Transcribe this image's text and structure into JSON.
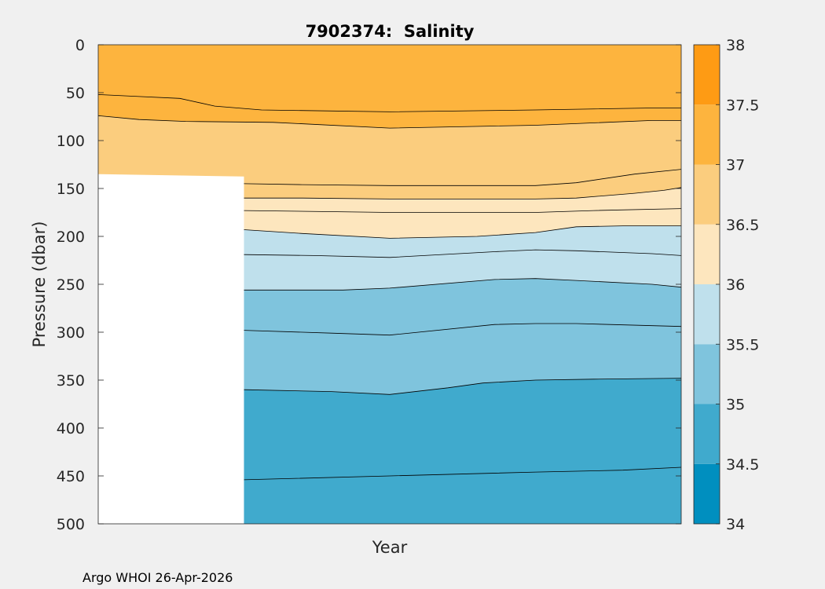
{
  "chart_data": {
    "type": "heatmap",
    "subtype": "filled-contour",
    "title": "7902374:  Salinity",
    "xlabel": "Year",
    "ylabel": "Pressure (dbar)",
    "ylim": [
      0,
      500
    ],
    "y_reversed": true,
    "y_ticks": [
      0,
      50,
      100,
      150,
      200,
      250,
      300,
      350,
      400,
      450,
      500
    ],
    "x_fraction_range": [
      0,
      1
    ],
    "x_ticks": [],
    "missing_data_region": {
      "x_fraction": [
        0,
        0.25
      ],
      "pressure_from": [
        135,
        137.5
      ],
      "pressure_to": 500
    },
    "colorbar": {
      "label_values": [
        "34",
        "34.5",
        "35",
        "35.5",
        "36",
        "36.5",
        "37",
        "37.5",
        "38"
      ],
      "bins": [
        {
          "from": 34.0,
          "to": 34.5,
          "color": "#008fbf"
        },
        {
          "from": 34.5,
          "to": 35.0,
          "color": "#40aacd"
        },
        {
          "from": 35.0,
          "to": 35.5,
          "color": "#7fc4dd"
        },
        {
          "from": 35.5,
          "to": 36.0,
          "color": "#bfe0ec"
        },
        {
          "from": 36.0,
          "to": 36.5,
          "color": "#fde6be"
        },
        {
          "from": 36.5,
          "to": 37.0,
          "color": "#fbcd7e"
        },
        {
          "from": 37.0,
          "to": 37.5,
          "color": "#fdb43e"
        },
        {
          "from": 37.5,
          "to": 38.0,
          "color": "#fe9b14"
        }
      ]
    },
    "contours": [
      {
        "name": "s-37.25",
        "below_color": "#fdb43e",
        "x": [
          0,
          0.07,
          0.14,
          0.2,
          0.28,
          0.5,
          0.75,
          0.95,
          1
        ],
        "pressure": [
          52,
          54,
          56,
          64,
          68,
          70,
          68,
          66,
          66
        ]
      },
      {
        "name": "s-37.0",
        "below_color": "#fbcd7e",
        "x": [
          0,
          0.07,
          0.15,
          0.3,
          0.5,
          0.75,
          0.95,
          1
        ],
        "pressure": [
          74,
          78,
          80,
          81,
          87,
          84,
          79,
          79
        ]
      },
      {
        "name": "s-36.75",
        "below_color": "#fbcd7e",
        "x": [
          0.25,
          0.35,
          0.5,
          0.75,
          0.82,
          0.92,
          1
        ],
        "pressure": [
          145,
          146,
          147,
          147,
          144,
          135,
          130
        ]
      },
      {
        "name": "s-36.5",
        "below_color": "#fde6be",
        "x": [
          0.25,
          0.35,
          0.5,
          0.75,
          0.82,
          0.92,
          0.97,
          1
        ],
        "pressure": [
          160,
          160,
          161,
          161,
          160,
          155,
          152,
          149
        ]
      },
      {
        "name": "s-36.25",
        "below_color": "#fde6be",
        "x": [
          0.25,
          0.5,
          0.75,
          0.85,
          1
        ],
        "pressure": [
          173,
          175,
          175,
          173,
          171
        ]
      },
      {
        "name": "s-36.0",
        "below_color": "#bfe0ec",
        "x": [
          0.25,
          0.35,
          0.5,
          0.65,
          0.75,
          0.82,
          0.9,
          1
        ],
        "pressure": [
          193,
          197,
          202,
          200,
          196,
          190,
          189,
          189
        ]
      },
      {
        "name": "s-35.75",
        "below_color": "#bfe0ec",
        "x": [
          0.25,
          0.37,
          0.5,
          0.68,
          0.75,
          0.82,
          0.95,
          1
        ],
        "pressure": [
          219,
          220,
          222,
          216,
          214,
          215,
          218,
          220
        ]
      },
      {
        "name": "s-35.5",
        "below_color": "#7fc4dd",
        "x": [
          0.25,
          0.42,
          0.5,
          0.68,
          0.75,
          0.82,
          0.95,
          1
        ],
        "pressure": [
          256,
          256,
          254,
          245,
          244,
          246,
          250,
          253
        ]
      },
      {
        "name": "s-35.25",
        "below_color": "#7fc4dd",
        "x": [
          0.25,
          0.4,
          0.5,
          0.68,
          0.75,
          0.82,
          1
        ],
        "pressure": [
          298,
          301,
          303,
          292,
          291,
          291,
          294
        ]
      },
      {
        "name": "s-35.0",
        "below_color": "#40aacd",
        "x": [
          0.25,
          0.4,
          0.5,
          0.6,
          0.66,
          0.75,
          0.85,
          1
        ],
        "pressure": [
          360,
          362,
          365,
          358,
          353,
          350,
          349,
          348
        ]
      },
      {
        "name": "s-34.75",
        "below_color": "#40aacd",
        "x": [
          0.25,
          0.5,
          0.75,
          0.9,
          1
        ],
        "pressure": [
          454,
          450,
          446,
          444,
          441
        ]
      }
    ]
  },
  "footer": {
    "credit": "Argo WHOI 26-Apr-2026"
  }
}
